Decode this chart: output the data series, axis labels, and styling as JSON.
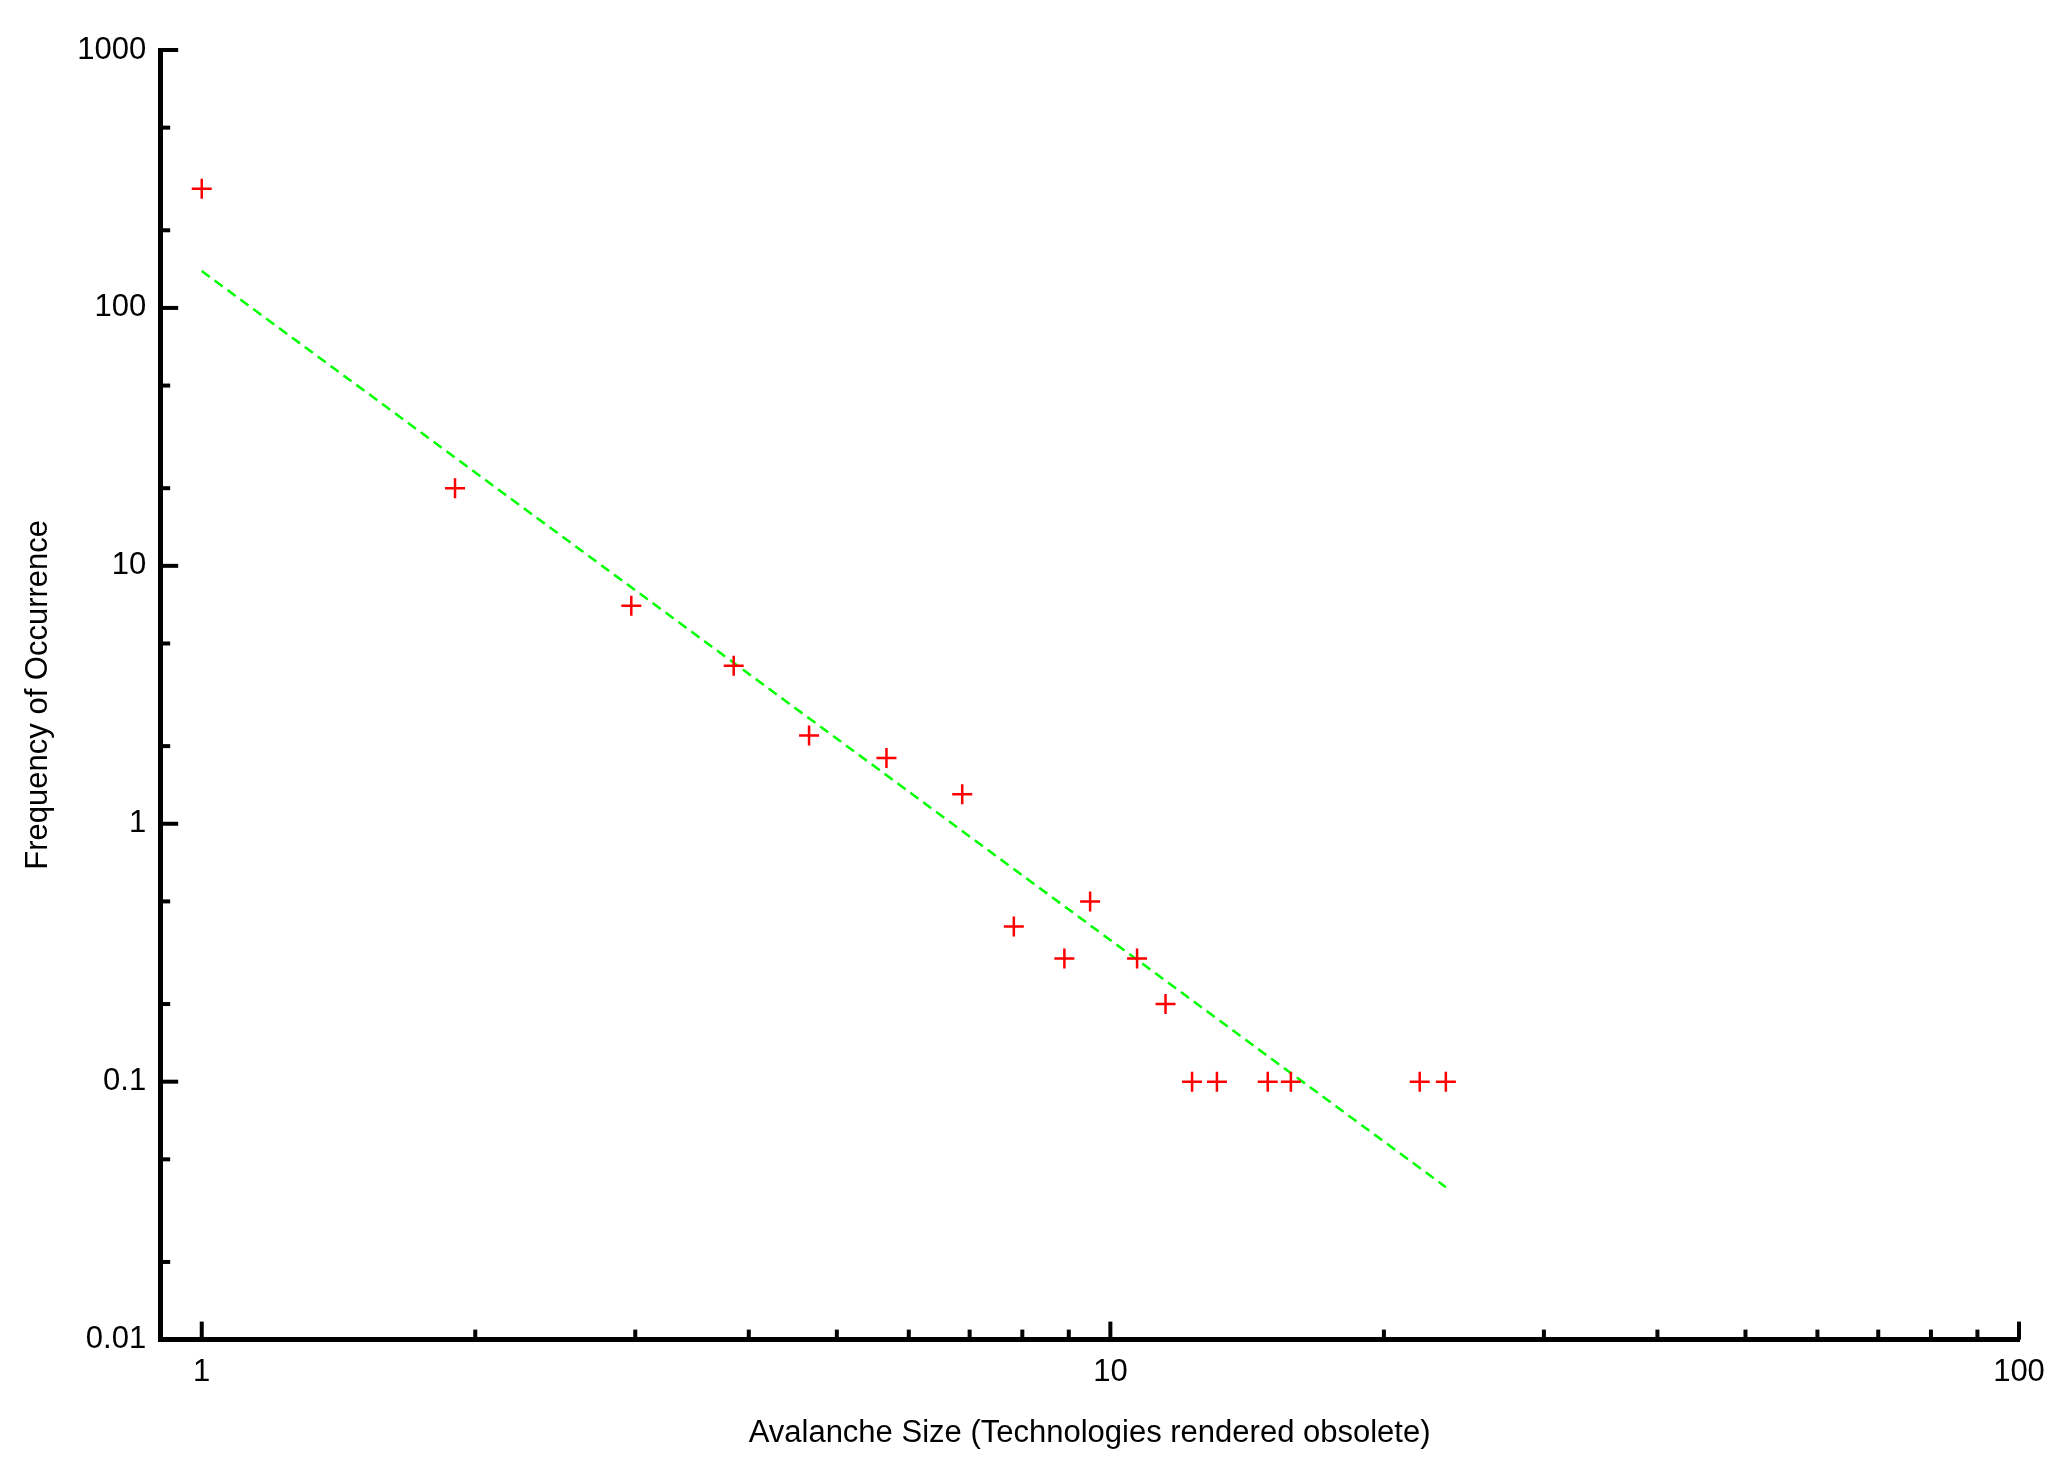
{
  "chart_data": {
    "type": "scatter",
    "xlabel": "Avalanche Size (Technologies rendered obsolete)",
    "ylabel": "Frequency of Occurrence",
    "log": "xy",
    "grid": false,
    "legend": false,
    "marker": "cross",
    "xlim": [
      0.9,
      100
    ],
    "ylim": [
      0.01,
      1000
    ],
    "xticks": [
      1,
      {
        "value": 2,
        "label": null
      },
      {
        "value": 3,
        "label": null
      },
      {
        "value": 4,
        "label": null
      },
      {
        "value": 5,
        "label": null
      },
      {
        "value": 6,
        "label": null
      },
      {
        "value": 7,
        "label": null
      },
      {
        "value": 8,
        "label": null
      },
      {
        "value": 9,
        "label": null
      },
      10,
      {
        "value": 20,
        "label": null
      },
      {
        "value": 30,
        "label": null
      },
      {
        "value": 40,
        "label": null
      },
      {
        "value": 50,
        "label": null
      },
      {
        "value": 60,
        "label": null
      },
      {
        "value": 70,
        "label": null
      },
      {
        "value": 80,
        "label": null
      },
      {
        "value": 90,
        "label": null
      },
      100
    ],
    "yticks": [
      0.01,
      {
        "value": 0.02,
        "label": null
      },
      {
        "value": 0.05,
        "label": null
      },
      0.1,
      {
        "value": 0.2,
        "label": null
      },
      {
        "value": 0.5,
        "label": null
      },
      1,
      {
        "value": 2,
        "label": null
      },
      {
        "value": 5,
        "label": null
      },
      10,
      {
        "value": 20,
        "label": null
      },
      {
        "value": 50,
        "label": null
      },
      100,
      {
        "value": 200,
        "label": null
      },
      {
        "value": 500,
        "label": null
      },
      1000
    ],
    "series": [
      {
        "type": "scatter",
        "color": "#ff0000",
        "x": [
          1,
          1.9,
          2.97,
          3.85,
          4.66,
          5.67,
          6.87,
          7.83,
          8.9,
          9.5,
          10.7,
          11.5,
          12.3,
          13.1,
          14.9,
          15.8,
          21.9,
          23.4
        ],
        "values": [
          290,
          20,
          7,
          4.1,
          2.2,
          1.8,
          1.3,
          0.4,
          0.3,
          0.5,
          0.3,
          0.2,
          0.1,
          0.1,
          0.1,
          0.1,
          0.1,
          0.1
        ]
      },
      {
        "type": "line",
        "color": "#00ff00",
        "line_style": "dashed",
        "marker": "none",
        "x": [
          1,
          23.4
        ],
        "values": [
          139,
          0.039
        ]
      }
    ]
  }
}
